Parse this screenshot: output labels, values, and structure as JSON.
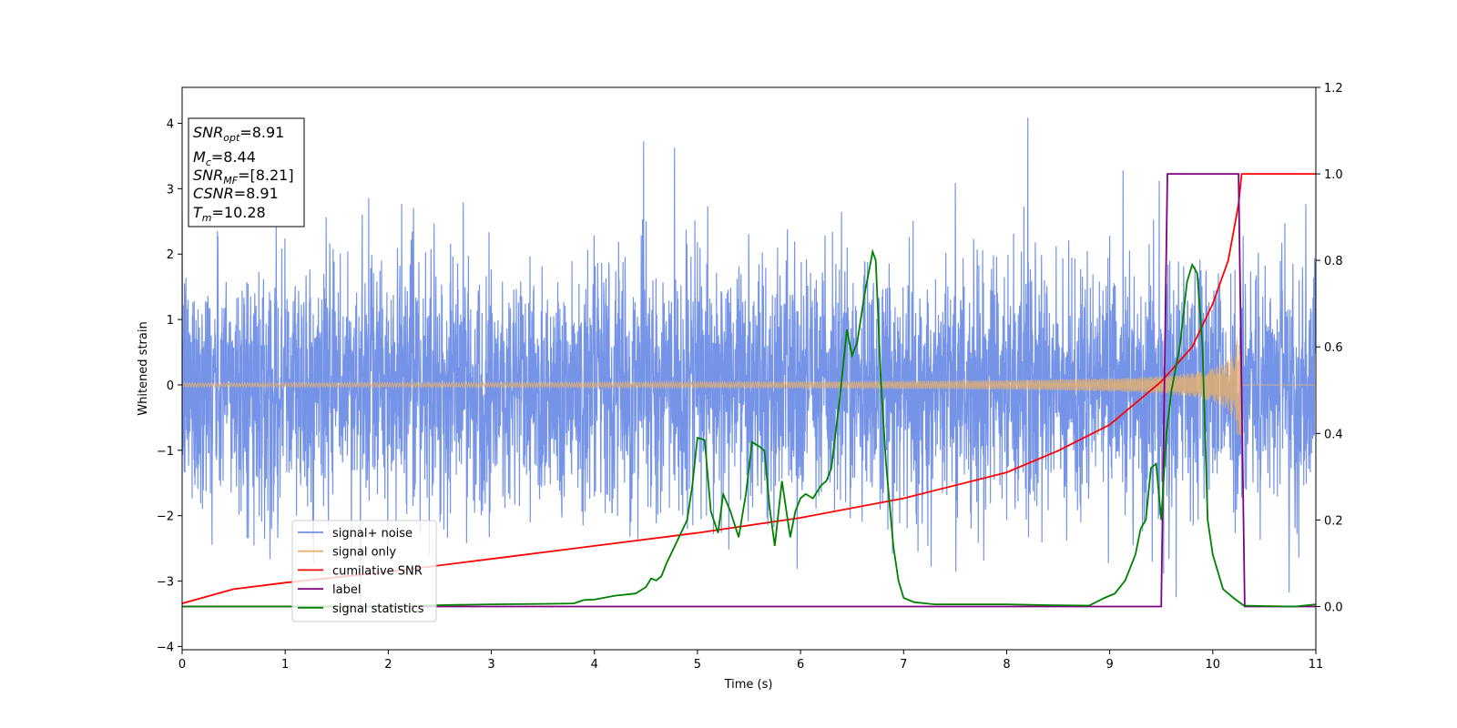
{
  "chart_data": {
    "type": "line",
    "xlabel": "Time (s)",
    "ylabel": "Whitened strain",
    "xlim": [
      0,
      11
    ],
    "ylim_left": [
      -4.05,
      4.55
    ],
    "ylim_right": [
      -0.1,
      1.2
    ],
    "x_ticks": [
      0,
      1,
      2,
      3,
      4,
      5,
      6,
      7,
      8,
      9,
      10,
      11
    ],
    "y_ticks_left": [
      -4,
      -3,
      -2,
      -1,
      0,
      1,
      2,
      3,
      4
    ],
    "y_ticks_right": [
      0.0,
      0.2,
      0.4,
      0.6,
      0.8,
      1.0,
      1.2
    ],
    "grid": false,
    "legend_position": "lower-left",
    "colors": {
      "signal_noise": "#6f8ee6",
      "signal_only": "#e8b06a",
      "cumulative_snr": "#ff0000",
      "label": "#800080",
      "signal_statistics": "#008000"
    },
    "annotation": [
      {
        "var": "SNR",
        "sub": "opt",
        "text": "=8.91"
      },
      {
        "var": "M",
        "sub": "c",
        "text": "=8.44"
      },
      {
        "var": "SNR",
        "sub": "MF",
        "text": "=[8.21]"
      },
      {
        "var": "CSNR",
        "sub": "",
        "text": "=8.91"
      },
      {
        "var": "T",
        "sub": "m",
        "text": "=10.28"
      }
    ],
    "series": [
      {
        "name": "signal+ noise",
        "axis": "left",
        "description_noise_std": 0.95,
        "noise_range": [
          -3.6,
          4.1
        ]
      },
      {
        "name": "signal only",
        "axis": "left",
        "chirp_end": 10.28,
        "amplitude_start": 0.03,
        "amplitude_end": 0.78
      },
      {
        "name": "cumilative SNR",
        "axis": "right",
        "x": [
          0,
          0.5,
          1,
          2,
          3,
          4,
          5,
          6,
          7,
          8,
          8.5,
          9,
          9.5,
          9.8,
          10,
          10.15,
          10.25,
          10.28,
          11
        ],
        "y": [
          0.007,
          0.04,
          0.055,
          0.08,
          0.11,
          0.14,
          0.17,
          0.205,
          0.25,
          0.31,
          0.36,
          0.42,
          0.52,
          0.6,
          0.7,
          0.8,
          0.93,
          1.0,
          1.0
        ]
      },
      {
        "name": "label",
        "axis": "right",
        "x": [
          0,
          9.5,
          9.56,
          10.25,
          10.31,
          11
        ],
        "y": [
          0,
          0,
          1,
          1,
          0,
          0
        ]
      },
      {
        "name": "signal statistics",
        "axis": "right",
        "x": [
          0,
          1,
          2,
          2.5,
          3,
          3.5,
          3.8,
          3.9,
          4.0,
          4.2,
          4.4,
          4.5,
          4.55,
          4.6,
          4.65,
          4.7,
          4.8,
          4.9,
          4.95,
          5.0,
          5.07,
          5.13,
          5.2,
          5.25,
          5.32,
          5.4,
          5.47,
          5.53,
          5.6,
          5.65,
          5.7,
          5.75,
          5.82,
          5.9,
          5.95,
          6.0,
          6.05,
          6.12,
          6.2,
          6.25,
          6.3,
          6.38,
          6.45,
          6.5,
          6.55,
          6.62,
          6.7,
          6.73,
          6.78,
          6.83,
          6.9,
          6.95,
          7.0,
          7.1,
          7.3,
          7.6,
          8.0,
          8.4,
          8.8,
          8.95,
          9.05,
          9.15,
          9.25,
          9.3,
          9.35,
          9.4,
          9.45,
          9.5,
          9.55,
          9.6,
          9.68,
          9.75,
          9.8,
          9.85,
          9.9,
          9.95,
          10.0,
          10.1,
          10.2,
          10.3,
          10.5,
          10.8,
          11.0
        ],
        "y": [
          0.0,
          0.0,
          0.0,
          0.003,
          0.005,
          0.006,
          0.007,
          0.015,
          0.016,
          0.025,
          0.03,
          0.045,
          0.065,
          0.06,
          0.07,
          0.1,
          0.15,
          0.2,
          0.28,
          0.39,
          0.385,
          0.22,
          0.17,
          0.26,
          0.22,
          0.16,
          0.26,
          0.38,
          0.37,
          0.36,
          0.23,
          0.14,
          0.29,
          0.16,
          0.22,
          0.25,
          0.26,
          0.25,
          0.28,
          0.29,
          0.32,
          0.48,
          0.64,
          0.58,
          0.61,
          0.72,
          0.82,
          0.8,
          0.52,
          0.33,
          0.14,
          0.06,
          0.02,
          0.01,
          0.005,
          0.005,
          0.005,
          0.003,
          0.002,
          0.02,
          0.03,
          0.06,
          0.12,
          0.18,
          0.2,
          0.32,
          0.33,
          0.2,
          0.4,
          0.5,
          0.6,
          0.75,
          0.79,
          0.77,
          0.6,
          0.2,
          0.12,
          0.04,
          0.02,
          0.002,
          0.001,
          0.0,
          0.005
        ]
      }
    ]
  }
}
